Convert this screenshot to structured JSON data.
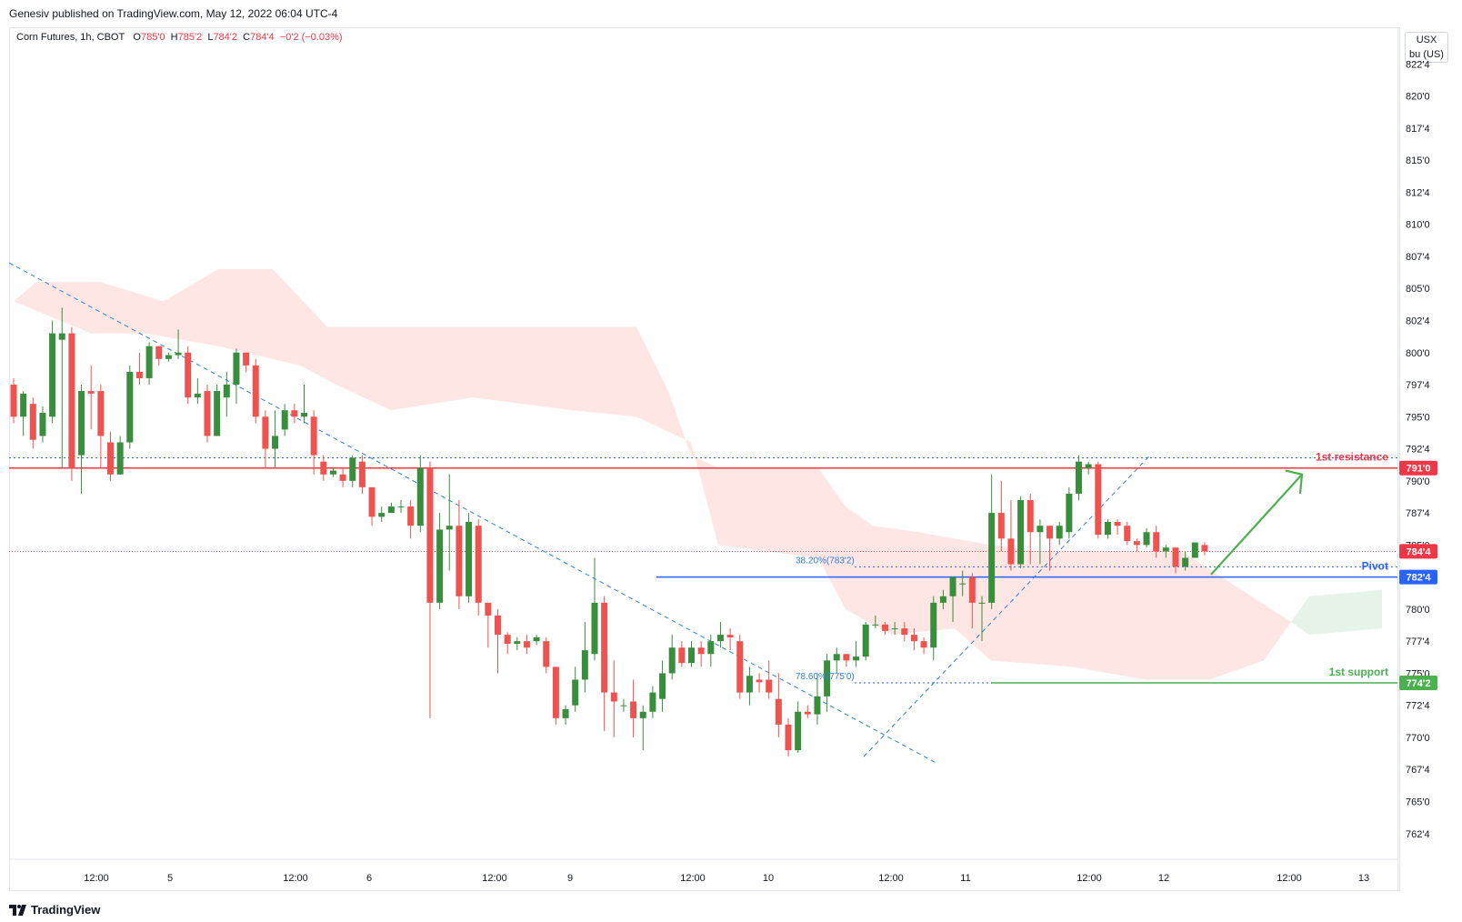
{
  "header": {
    "published": "Genesiv published on TradingView.com, May 12, 2022 06:04 UTC-4"
  },
  "symbol": {
    "name": "Corn Futures, 1h, CBOT",
    "open_label": "O",
    "open": "785'0",
    "high_label": "H",
    "high": "785'2",
    "low_label": "L",
    "low": "784'2",
    "close_label": "C",
    "close": "784'4",
    "change": "−0'2 (−0.03%)"
  },
  "unit": {
    "currency": "USX",
    "measure": "bu (US)"
  },
  "footer": {
    "brand": "TradingView"
  },
  "chart_data": {
    "type": "candlestick",
    "price_ticks": [
      "822'4",
      "820'0",
      "817'4",
      "815'0",
      "812'4",
      "810'0",
      "807'4",
      "805'0",
      "802'4",
      "800'0",
      "797'4",
      "795'0",
      "792'4",
      "790'0",
      "787'4",
      "785'0",
      "782'4",
      "780'0",
      "777'4",
      "775'0",
      "772'4",
      "770'0",
      "767'4",
      "765'0",
      "762'4"
    ],
    "price_tick_values": [
      822.5,
      820,
      817.5,
      815,
      812.5,
      810,
      807.5,
      805,
      802.5,
      800,
      797.5,
      795,
      792.5,
      790,
      787.5,
      785,
      782.5,
      780,
      777.5,
      775,
      772.5,
      770,
      767.5,
      765,
      762.5
    ],
    "ylim": [
      760.5,
      823.8
    ],
    "time_labels": [
      "12:00",
      "5",
      "12:00",
      "6",
      "12:00",
      "9",
      "12:00",
      "10",
      "12:00",
      "11",
      "12:00",
      "12",
      "12:00",
      "13"
    ],
    "levels": [
      {
        "name": "1st resistance",
        "value": 791.0,
        "label": "791'0",
        "color": "#f23645"
      },
      {
        "name": "Pivot",
        "value": 782.5,
        "label": "782'4",
        "color": "#2962ff"
      },
      {
        "name": "1st support",
        "value": 774.25,
        "label": "774'2",
        "color": "#4caf50"
      }
    ],
    "last_price": {
      "value": 784.5,
      "label": "784'4",
      "color": "#f23645"
    },
    "fib_labels": [
      "38.20%(783'2)",
      "78.60%(775'0)"
    ],
    "colors": {
      "up": "#388e3c",
      "down": "#ef5350",
      "cloud_red": "#fde6e4",
      "cloud_green": "#e6f3e8",
      "trend": "#2f80d8",
      "arrow": "#4caf50"
    },
    "candles": [
      [
        797.5,
        795.0,
        798.0,
        794.5
      ],
      [
        795.0,
        796.8,
        797.0,
        793.5
      ],
      [
        796.0,
        793.2,
        796.5,
        792.5
      ],
      [
        793.5,
        795.3,
        795.8,
        793.0
      ],
      [
        795.0,
        801.5,
        802.5,
        794.5
      ],
      [
        801.0,
        801.5,
        803.5,
        791.0
      ],
      [
        801.5,
        791.0,
        802.0,
        790.0
      ],
      [
        792.0,
        797.0,
        797.5,
        789.0
      ],
      [
        797.0,
        796.8,
        799.0,
        794.0
      ],
      [
        797.0,
        793.5,
        797.5,
        791.0
      ],
      [
        793.0,
        790.5,
        793.8,
        790.0
      ],
      [
        790.5,
        793.0,
        793.5,
        790.5
      ],
      [
        793.0,
        798.5,
        799.0,
        792.5
      ],
      [
        798.5,
        798.0,
        800.0,
        797.5
      ],
      [
        798.0,
        800.5,
        800.8,
        797.5
      ],
      [
        800.5,
        799.5,
        800.5,
        799.0
      ],
      [
        799.5,
        799.8,
        800.0,
        799.3
      ],
      [
        799.8,
        800.0,
        801.8,
        799.5
      ],
      [
        800.0,
        796.5,
        800.5,
        796.0
      ],
      [
        796.5,
        796.8,
        798.0,
        796.0
      ],
      [
        797.0,
        793.5,
        797.5,
        793.0
      ],
      [
        793.5,
        797.0,
        797.5,
        793.5
      ],
      [
        796.5,
        797.5,
        798.5,
        795.0
      ],
      [
        797.5,
        800.0,
        800.3,
        796.0
      ],
      [
        800.0,
        799.0,
        800.0,
        798.5
      ],
      [
        799.0,
        795.0,
        799.5,
        794.5
      ],
      [
        795.0,
        792.5,
        795.5,
        791.0
      ],
      [
        792.5,
        793.5,
        795.5,
        791.0
      ],
      [
        794.0,
        795.5,
        796.0,
        793.5
      ],
      [
        795.5,
        795.0,
        796.0,
        794.5
      ],
      [
        795.0,
        795.3,
        797.5,
        794.5
      ],
      [
        795.0,
        792.0,
        795.5,
        790.5
      ],
      [
        791.5,
        790.5,
        792.0,
        790.0
      ],
      [
        790.5,
        790.8,
        791.0,
        790.3
      ],
      [
        790.5,
        790.0,
        791.0,
        789.5
      ],
      [
        790.0,
        791.8,
        792.0,
        789.5
      ],
      [
        791.5,
        789.5,
        792.0,
        789.0
      ],
      [
        789.5,
        787.2,
        789.5,
        786.5
      ],
      [
        787.2,
        787.5,
        788.0,
        786.8
      ],
      [
        787.5,
        788.0,
        788.3,
        787.5
      ],
      [
        788.0,
        788.0,
        788.5,
        787.5
      ],
      [
        788.0,
        786.5,
        788.5,
        785.5
      ],
      [
        786.5,
        791.0,
        792.0,
        786.0
      ],
      [
        791.0,
        780.5,
        791.5,
        771.5
      ],
      [
        780.5,
        786.2,
        787.5,
        780.0
      ],
      [
        786.2,
        786.5,
        790.5,
        783.0
      ],
      [
        786.5,
        781.0,
        788.5,
        780.0
      ],
      [
        781.0,
        786.8,
        787.5,
        780.5
      ],
      [
        786.5,
        780.5,
        787.0,
        779.5
      ],
      [
        780.5,
        779.5,
        780.5,
        777.0
      ],
      [
        779.5,
        778.0,
        780.0,
        775.0
      ],
      [
        778.0,
        777.3,
        778.2,
        776.5
      ],
      [
        777.3,
        777.5,
        777.8,
        776.8
      ],
      [
        777.5,
        777.0,
        778.0,
        776.5
      ],
      [
        777.5,
        777.8,
        778.0,
        777.2
      ],
      [
        777.5,
        775.5,
        777.8,
        775.0
      ],
      [
        775.5,
        771.5,
        775.5,
        771.0
      ],
      [
        771.5,
        772.2,
        772.5,
        771.0
      ],
      [
        772.5,
        774.5,
        775.5,
        772.0
      ],
      [
        774.5,
        776.8,
        779.0,
        773.5
      ],
      [
        776.5,
        780.5,
        784.0,
        776.0
      ],
      [
        780.5,
        773.5,
        781.0,
        770.5
      ],
      [
        773.5,
        772.8,
        776.0,
        770.0
      ],
      [
        772.5,
        772.5,
        773.0,
        772.0
      ],
      [
        772.8,
        771.5,
        774.5,
        770.0
      ],
      [
        771.5,
        772.0,
        772.5,
        769.0
      ],
      [
        772.0,
        773.5,
        774.0,
        771.5
      ],
      [
        773.0,
        775.0,
        776.0,
        772.0
      ],
      [
        775.0,
        777.0,
        778.0,
        774.5
      ],
      [
        777.0,
        775.8,
        777.5,
        775.5
      ],
      [
        775.8,
        777.0,
        777.5,
        775.5
      ],
      [
        777.0,
        776.5,
        777.5,
        775.5
      ],
      [
        776.5,
        777.5,
        778.0,
        775.5
      ],
      [
        777.5,
        778.0,
        779.0,
        777.0
      ],
      [
        778.0,
        777.8,
        778.5,
        776.8
      ],
      [
        777.5,
        773.5,
        778.0,
        773.0
      ],
      [
        773.5,
        774.8,
        775.5,
        772.5
      ],
      [
        774.5,
        774.3,
        775.0,
        773.5
      ],
      [
        774.5,
        773.5,
        776.0,
        773.0
      ],
      [
        773.0,
        771.0,
        775.0,
        770.0
      ],
      [
        771.0,
        769.0,
        771.5,
        768.5
      ],
      [
        769.0,
        772.0,
        772.8,
        768.8
      ],
      [
        772.0,
        771.8,
        772.5,
        771.5
      ],
      [
        771.8,
        773.2,
        775.0,
        771.0
      ],
      [
        773.2,
        776.0,
        776.5,
        772.0
      ],
      [
        776.0,
        776.5,
        777.0,
        775.0
      ],
      [
        776.5,
        776.0,
        776.5,
        775.5
      ],
      [
        776.0,
        776.3,
        777.5,
        775.5
      ],
      [
        776.3,
        778.8,
        779.0,
        776.0
      ],
      [
        778.8,
        778.8,
        779.5,
        778.5
      ],
      [
        778.8,
        778.3,
        779.0,
        778.0
      ],
      [
        778.5,
        778.5,
        779.0,
        778.0
      ],
      [
        778.5,
        778.0,
        779.0,
        777.5
      ],
      [
        778.0,
        777.5,
        778.5,
        776.8
      ],
      [
        777.5,
        777.0,
        777.8,
        776.5
      ],
      [
        777.0,
        780.5,
        781.0,
        776.0
      ],
      [
        780.5,
        781.0,
        781.5,
        780.0
      ],
      [
        781.0,
        782.5,
        782.5,
        779.0
      ],
      [
        782.0,
        782.0,
        783.0,
        781.0
      ],
      [
        782.5,
        780.5,
        782.8,
        778.5
      ],
      [
        780.5,
        780.5,
        781.0,
        777.5
      ],
      [
        780.5,
        787.5,
        790.5,
        780.0
      ],
      [
        787.5,
        785.5,
        790.0,
        784.5
      ],
      [
        785.5,
        783.5,
        788.5,
        783.0
      ],
      [
        783.5,
        788.5,
        788.8,
        783.2
      ],
      [
        788.5,
        786.0,
        789.0,
        783.5
      ],
      [
        786.0,
        786.5,
        787.0,
        783.5
      ],
      [
        786.5,
        785.5,
        786.5,
        783.0
      ],
      [
        785.5,
        786.5,
        786.8,
        785.0
      ],
      [
        786.0,
        789.0,
        789.5,
        785.5
      ],
      [
        789.0,
        791.5,
        792.0,
        788.5
      ],
      [
        791.0,
        791.3,
        791.5,
        790.5
      ],
      [
        791.3,
        785.8,
        791.5,
        785.5
      ],
      [
        785.8,
        786.8,
        787.0,
        785.5
      ],
      [
        786.8,
        786.5,
        787.0,
        785.8
      ],
      [
        786.5,
        785.3,
        786.8,
        785.0
      ],
      [
        785.3,
        785.0,
        785.5,
        784.5
      ],
      [
        785.0,
        786.0,
        786.3,
        784.8
      ],
      [
        786.0,
        784.5,
        786.5,
        784.0
      ],
      [
        784.5,
        784.8,
        785.0,
        784.0
      ],
      [
        784.8,
        783.3,
        784.8,
        782.8
      ],
      [
        783.3,
        784.0,
        784.5,
        783.0
      ],
      [
        784.0,
        785.2,
        785.2,
        784.0
      ],
      [
        785.0,
        784.5,
        785.2,
        784.2
      ]
    ]
  }
}
